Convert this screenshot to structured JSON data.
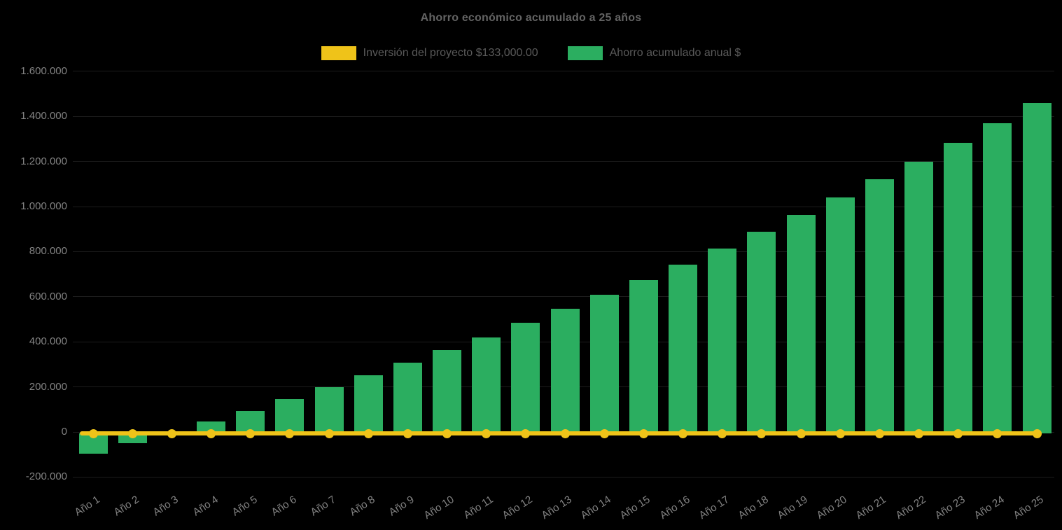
{
  "title": "Ahorro económico acumulado a 25 años",
  "legend": {
    "items": [
      {
        "label": "Inversión del proyecto $133,000.00",
        "color": "#EFC319",
        "series": "investment-line"
      },
      {
        "label": "Ahorro acumulado anual $",
        "color": "#2BAE60",
        "series": "savings-bars"
      }
    ],
    "position": "top"
  },
  "colors": {
    "background": "#000000",
    "bar_green": "#2BAE60",
    "line_yellow": "#EFC319",
    "title_text": "#636363",
    "legend_text": "#595959",
    "axis_text": "#828282",
    "gridline": "#1c1c1c"
  },
  "chart_data": {
    "type": "bar",
    "title": "Ahorro económico acumulado a 25 años",
    "categories": [
      "Año 1",
      "Año 2",
      "Año 3",
      "Año 4",
      "Año 5",
      "Año 6",
      "Año 7",
      "Año 8",
      "Año 9",
      "Año 10",
      "Año 11",
      "Año 12",
      "Año 13",
      "Año 14",
      "Año 15",
      "Año 16",
      "Año 17",
      "Año 18",
      "Año 19",
      "Año 20",
      "Año 21",
      "Año 22",
      "Año 23",
      "Año 24",
      "Año 25"
    ],
    "series": [
      {
        "name": "Ahorro acumulado anual $",
        "type": "bar",
        "color": "#2BAE60",
        "values": [
          -90000,
          -44000,
          2000,
          52000,
          100000,
          152000,
          205000,
          258000,
          313000,
          370000,
          427000,
          490000,
          552000,
          615000,
          681000,
          750000,
          820000,
          895000,
          970000,
          1048000,
          1126000,
          1205000,
          1290000,
          1377000,
          1465000
        ]
      },
      {
        "name": "Inversión del proyecto $133,000.00",
        "type": "line",
        "color": "#EFC319",
        "values": [
          0,
          0,
          0,
          0,
          0,
          0,
          0,
          0,
          0,
          0,
          0,
          0,
          0,
          0,
          0,
          0,
          0,
          0,
          0,
          0,
          0,
          0,
          0,
          0,
          0
        ]
      }
    ],
    "y_ticks": [
      {
        "value": 1600000,
        "label": "1.600.000"
      },
      {
        "value": 1400000,
        "label": "1.400.000"
      },
      {
        "value": 1200000,
        "label": "1.200.000"
      },
      {
        "value": 1000000,
        "label": "1.000.000"
      },
      {
        "value": 800000,
        "label": "800.000"
      },
      {
        "value": 600000,
        "label": "600.000"
      },
      {
        "value": 400000,
        "label": "400.000"
      },
      {
        "value": 200000,
        "label": "200.000"
      },
      {
        "value": 0,
        "label": "0"
      },
      {
        "value": -200000,
        "label": "-200.000"
      }
    ],
    "ylim": [
      -200000,
      1600000
    ],
    "xlabel": "",
    "ylabel": "",
    "grid": "horizontal-faint",
    "legend_position": "top-center",
    "x_label_rotation_deg": -33
  }
}
